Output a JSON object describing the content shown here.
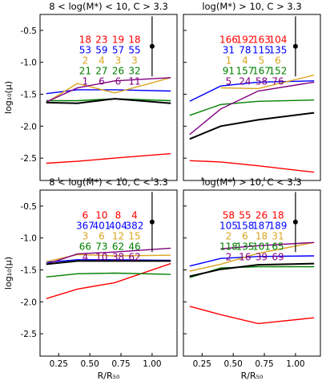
{
  "chart_data": {
    "type": "line",
    "xlabel": "R/R₅₀",
    "ylabel": "log₁₀(μ)",
    "xlim": [
      0.1,
      1.2
    ],
    "ylim": [
      -2.85,
      -0.25
    ],
    "xticks": [
      "0.25",
      "0.50",
      "0.75",
      "1.00"
    ],
    "xtick_values": [
      0.25,
      0.5,
      0.75,
      1.0
    ],
    "yticks": [
      "-0.5",
      "-1.0",
      "-1.5",
      "-2.0",
      "-2.5"
    ],
    "ytick_values": [
      -0.5,
      -1.0,
      -1.5,
      -2.0,
      -2.5
    ],
    "grid": false,
    "colors": [
      "#ff0000",
      "#0000ff",
      "#daa520",
      "#008000",
      "#800080",
      "#000000"
    ],
    "error_bar": {
      "x": 1.0,
      "y": -0.75,
      "yerr": 0.47
    },
    "panels": [
      {
        "title": "8 < log(M*) < 10, C > 3.3",
        "count_rows": [
          {
            "color": "#ff0000",
            "values": [
              "18",
              "23",
              "19",
              "18"
            ]
          },
          {
            "color": "#0000ff",
            "values": [
              "53",
              "59",
              "57",
              "55"
            ]
          },
          {
            "color": "#daa520",
            "values": [
              "2",
              "4",
              "3",
              "3"
            ]
          },
          {
            "color": "#008000",
            "values": [
              "21",
              "27",
              "26",
              "32"
            ]
          },
          {
            "color": "#800080",
            "values": [
              "1",
              "6",
              "6",
              "11"
            ]
          }
        ],
        "series": [
          {
            "color": "#ff0000",
            "x": [
              0.15,
              0.4,
              0.7,
              1.15
            ],
            "y": [
              -2.58,
              -2.55,
              -2.5,
              -2.43
            ]
          },
          {
            "color": "#0000ff",
            "x": [
              0.15,
              0.4,
              0.7,
              1.15
            ],
            "y": [
              -1.49,
              -1.43,
              -1.43,
              -1.45
            ]
          },
          {
            "color": "#daa520",
            "x": [
              0.15,
              0.4,
              0.7,
              1.15
            ],
            "y": [
              -1.63,
              -1.33,
              -1.48,
              -1.24
            ]
          },
          {
            "color": "#008000",
            "x": [
              0.15,
              0.4,
              0.7,
              1.15
            ],
            "y": [
              -1.6,
              -1.6,
              -1.57,
              -1.6
            ]
          },
          {
            "color": "#800080",
            "x": [
              0.15,
              0.4,
              0.7,
              1.15
            ],
            "y": [
              -1.62,
              -1.4,
              -1.29,
              -1.24
            ]
          },
          {
            "color": "#000000",
            "x": [
              0.15,
              0.4,
              0.7,
              1.15
            ],
            "y": [
              -1.63,
              -1.64,
              -1.57,
              -1.64
            ]
          }
        ]
      },
      {
        "title": "log(M*) > 10, C > 3.3",
        "count_rows": [
          {
            "color": "#ff0000",
            "values": [
              "166",
              "192",
              "163",
              "104"
            ]
          },
          {
            "color": "#0000ff",
            "values": [
              "31",
              "78",
              "115",
              "135"
            ]
          },
          {
            "color": "#daa520",
            "values": [
              "1",
              "4",
              "5",
              "6"
            ]
          },
          {
            "color": "#008000",
            "values": [
              "91",
              "157",
              "167",
              "152"
            ]
          },
          {
            "color": "#800080",
            "values": [
              "5",
              "24",
              "58",
              "76"
            ]
          }
        ],
        "series": [
          {
            "color": "#ff0000",
            "x": [
              0.15,
              0.4,
              0.7,
              1.15
            ],
            "y": [
              -2.54,
              -2.56,
              -2.62,
              -2.72
            ]
          },
          {
            "color": "#0000ff",
            "x": [
              0.15,
              0.4,
              0.7,
              1.15
            ],
            "y": [
              -1.61,
              -1.37,
              -1.31,
              -1.29
            ]
          },
          {
            "color": "#daa520",
            "x": [
              0.4,
              0.7,
              1.15
            ],
            "y": [
              -1.4,
              -1.41,
              -1.2
            ]
          },
          {
            "color": "#008000",
            "x": [
              0.15,
              0.4,
              0.7,
              1.15
            ],
            "y": [
              -1.83,
              -1.66,
              -1.61,
              -1.59
            ]
          },
          {
            "color": "#800080",
            "x": [
              0.15,
              0.4,
              0.7,
              1.15
            ],
            "y": [
              -2.13,
              -1.73,
              -1.45,
              -1.31
            ]
          },
          {
            "color": "#000000",
            "x": [
              0.15,
              0.4,
              0.7,
              1.15
            ],
            "y": [
              -2.2,
              -2.0,
              -1.9,
              -1.79
            ]
          }
        ]
      },
      {
        "title": "8 < log(M*) < 10, C < 3.3",
        "count_rows": [
          {
            "color": "#ff0000",
            "values": [
              "6",
              "10",
              "8",
              "4"
            ]
          },
          {
            "color": "#0000ff",
            "values": [
              "367",
              "401",
              "404",
              "382"
            ]
          },
          {
            "color": "#daa520",
            "values": [
              "3",
              "6",
              "12",
              "15"
            ]
          },
          {
            "color": "#008000",
            "values": [
              "66",
              "73",
              "62",
              "46"
            ]
          },
          {
            "color": "#800080",
            "values": [
              "4",
              "10",
              "38",
              "62"
            ]
          }
        ],
        "series": [
          {
            "color": "#ff0000",
            "x": [
              0.15,
              0.4,
              0.7,
              1.15
            ],
            "y": [
              -1.95,
              -1.8,
              -1.7,
              -1.4
            ]
          },
          {
            "color": "#0000ff",
            "x": [
              0.15,
              0.4,
              0.7,
              1.15
            ],
            "y": [
              -1.38,
              -1.34,
              -1.34,
              -1.35
            ]
          },
          {
            "color": "#daa520",
            "x": [
              0.15,
              0.4,
              0.7,
              1.15
            ],
            "y": [
              -1.37,
              -1.26,
              -1.28,
              -1.27
            ]
          },
          {
            "color": "#008000",
            "x": [
              0.15,
              0.4,
              0.7,
              1.15
            ],
            "y": [
              -1.61,
              -1.56,
              -1.55,
              -1.57
            ]
          },
          {
            "color": "#800080",
            "x": [
              0.15,
              0.4,
              0.7,
              1.15
            ],
            "y": [
              -1.41,
              -1.25,
              -1.22,
              -1.16
            ]
          },
          {
            "color": "#000000",
            "x": [
              0.15,
              0.4,
              0.7,
              1.15
            ],
            "y": [
              -1.41,
              -1.36,
              -1.36,
              -1.36
            ]
          }
        ]
      },
      {
        "title": "log(M*) > 10, C < 3.3",
        "count_rows": [
          {
            "color": "#ff0000",
            "values": [
              "58",
              "55",
              "26",
              "18"
            ]
          },
          {
            "color": "#0000ff",
            "values": [
              "105",
              "158",
              "187",
              "189"
            ]
          },
          {
            "color": "#daa520",
            "values": [
              "2",
              "6",
              "18",
              "31"
            ]
          },
          {
            "color": "#008000",
            "values": [
              "118",
              "135",
              "101",
              "65"
            ]
          },
          {
            "color": "#800080",
            "values": [
              "2",
              "16",
              "39",
              "69"
            ]
          }
        ],
        "series": [
          {
            "color": "#ff0000",
            "x": [
              0.15,
              0.4,
              0.7,
              1.15
            ],
            "y": [
              -2.07,
              -2.2,
              -2.34,
              -2.25
            ]
          },
          {
            "color": "#0000ff",
            "x": [
              0.15,
              0.4,
              0.7,
              1.15
            ],
            "y": [
              -1.44,
              -1.32,
              -1.29,
              -1.28
            ]
          },
          {
            "color": "#daa520",
            "x": [
              0.15,
              0.4,
              0.7,
              1.15
            ],
            "y": [
              -1.52,
              -1.41,
              -1.24,
              -1.07
            ]
          },
          {
            "color": "#008000",
            "x": [
              0.15,
              0.4,
              0.7,
              1.15
            ],
            "y": [
              -1.62,
              -1.47,
              -1.45,
              -1.45
            ]
          },
          {
            "color": "#800080",
            "x": [
              0.4,
              0.7,
              1.15
            ],
            "y": [
              -1.17,
              -1.12,
              -1.07
            ]
          },
          {
            "color": "#000000",
            "x": [
              0.15,
              0.4,
              0.7,
              1.15
            ],
            "y": [
              -1.6,
              -1.49,
              -1.42,
              -1.4
            ]
          }
        ]
      }
    ]
  }
}
